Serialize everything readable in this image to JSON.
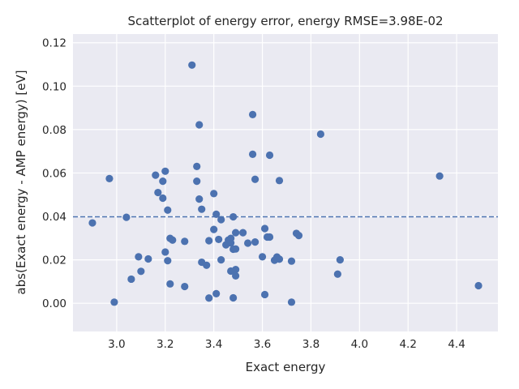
{
  "chart_data": {
    "type": "scatter",
    "title": "Scatterplot of energy error, energy RMSE=3.98E-02",
    "xlabel": "Exact energy",
    "ylabel": "abs(Exact energy - AMP energy) [eV]",
    "xlim": [
      2.82,
      4.57
    ],
    "ylim": [
      -0.013,
      0.124
    ],
    "xticks": [
      "3.0",
      "3.2",
      "3.4",
      "3.6",
      "3.8",
      "4.0",
      "4.2",
      "4.4"
    ],
    "yticks": [
      "0.00",
      "0.02",
      "0.04",
      "0.06",
      "0.08",
      "0.10",
      "0.12"
    ],
    "grid": true,
    "colors": {
      "background": "#eaeaf2",
      "grid": "#ffffff",
      "points": "#4c72b0",
      "threshold": "#4c72b0"
    },
    "threshold_line": {
      "y": 0.0398,
      "style": "dashed"
    },
    "points": [
      [
        2.9,
        0.037
      ],
      [
        2.97,
        0.0574
      ],
      [
        2.99,
        0.0005
      ],
      [
        3.04,
        0.0396
      ],
      [
        3.06,
        0.0111
      ],
      [
        3.09,
        0.0214
      ],
      [
        3.1,
        0.0147
      ],
      [
        3.13,
        0.0204
      ],
      [
        3.16,
        0.059
      ],
      [
        3.17,
        0.051
      ],
      [
        3.19,
        0.0484
      ],
      [
        3.19,
        0.0562
      ],
      [
        3.2,
        0.0608
      ],
      [
        3.2,
        0.0236
      ],
      [
        3.21,
        0.0196
      ],
      [
        3.21,
        0.0429
      ],
      [
        3.22,
        0.0089
      ],
      [
        3.22,
        0.0299
      ],
      [
        3.23,
        0.0291
      ],
      [
        3.28,
        0.0077
      ],
      [
        3.28,
        0.0285
      ],
      [
        3.31,
        0.1097
      ],
      [
        3.33,
        0.063
      ],
      [
        3.33,
        0.0562
      ],
      [
        3.34,
        0.0822
      ],
      [
        3.34,
        0.048
      ],
      [
        3.35,
        0.0433
      ],
      [
        3.35,
        0.0189
      ],
      [
        3.37,
        0.0175
      ],
      [
        3.38,
        0.0024
      ],
      [
        3.38,
        0.0288
      ],
      [
        3.4,
        0.0505
      ],
      [
        3.4,
        0.034
      ],
      [
        3.41,
        0.0044
      ],
      [
        3.41,
        0.041
      ],
      [
        3.42,
        0.0294
      ],
      [
        3.43,
        0.0385
      ],
      [
        3.43,
        0.02
      ],
      [
        3.45,
        0.0269
      ],
      [
        3.46,
        0.0291
      ],
      [
        3.47,
        0.0148
      ],
      [
        3.47,
        0.0299
      ],
      [
        3.47,
        0.0278
      ],
      [
        3.48,
        0.0398
      ],
      [
        3.48,
        0.0249
      ],
      [
        3.48,
        0.0025
      ],
      [
        3.49,
        0.0325
      ],
      [
        3.49,
        0.0155
      ],
      [
        3.49,
        0.0126
      ],
      [
        3.49,
        0.025
      ],
      [
        3.52,
        0.0325
      ],
      [
        3.54,
        0.0277
      ],
      [
        3.56,
        0.0686
      ],
      [
        3.56,
        0.0869
      ],
      [
        3.57,
        0.0571
      ],
      [
        3.57,
        0.0282
      ],
      [
        3.6,
        0.0214
      ],
      [
        3.61,
        0.004
      ],
      [
        3.61,
        0.0344
      ],
      [
        3.62,
        0.0305
      ],
      [
        3.63,
        0.0682
      ],
      [
        3.63,
        0.0305
      ],
      [
        3.65,
        0.0198
      ],
      [
        3.66,
        0.0213
      ],
      [
        3.67,
        0.0565
      ],
      [
        3.67,
        0.0203
      ],
      [
        3.72,
        0.0194
      ],
      [
        3.72,
        0.0005
      ],
      [
        3.74,
        0.0322
      ],
      [
        3.75,
        0.0312
      ],
      [
        3.84,
        0.0779
      ],
      [
        3.91,
        0.0134
      ],
      [
        3.92,
        0.02
      ],
      [
        4.33,
        0.0586
      ],
      [
        4.49,
        0.0081
      ]
    ]
  }
}
